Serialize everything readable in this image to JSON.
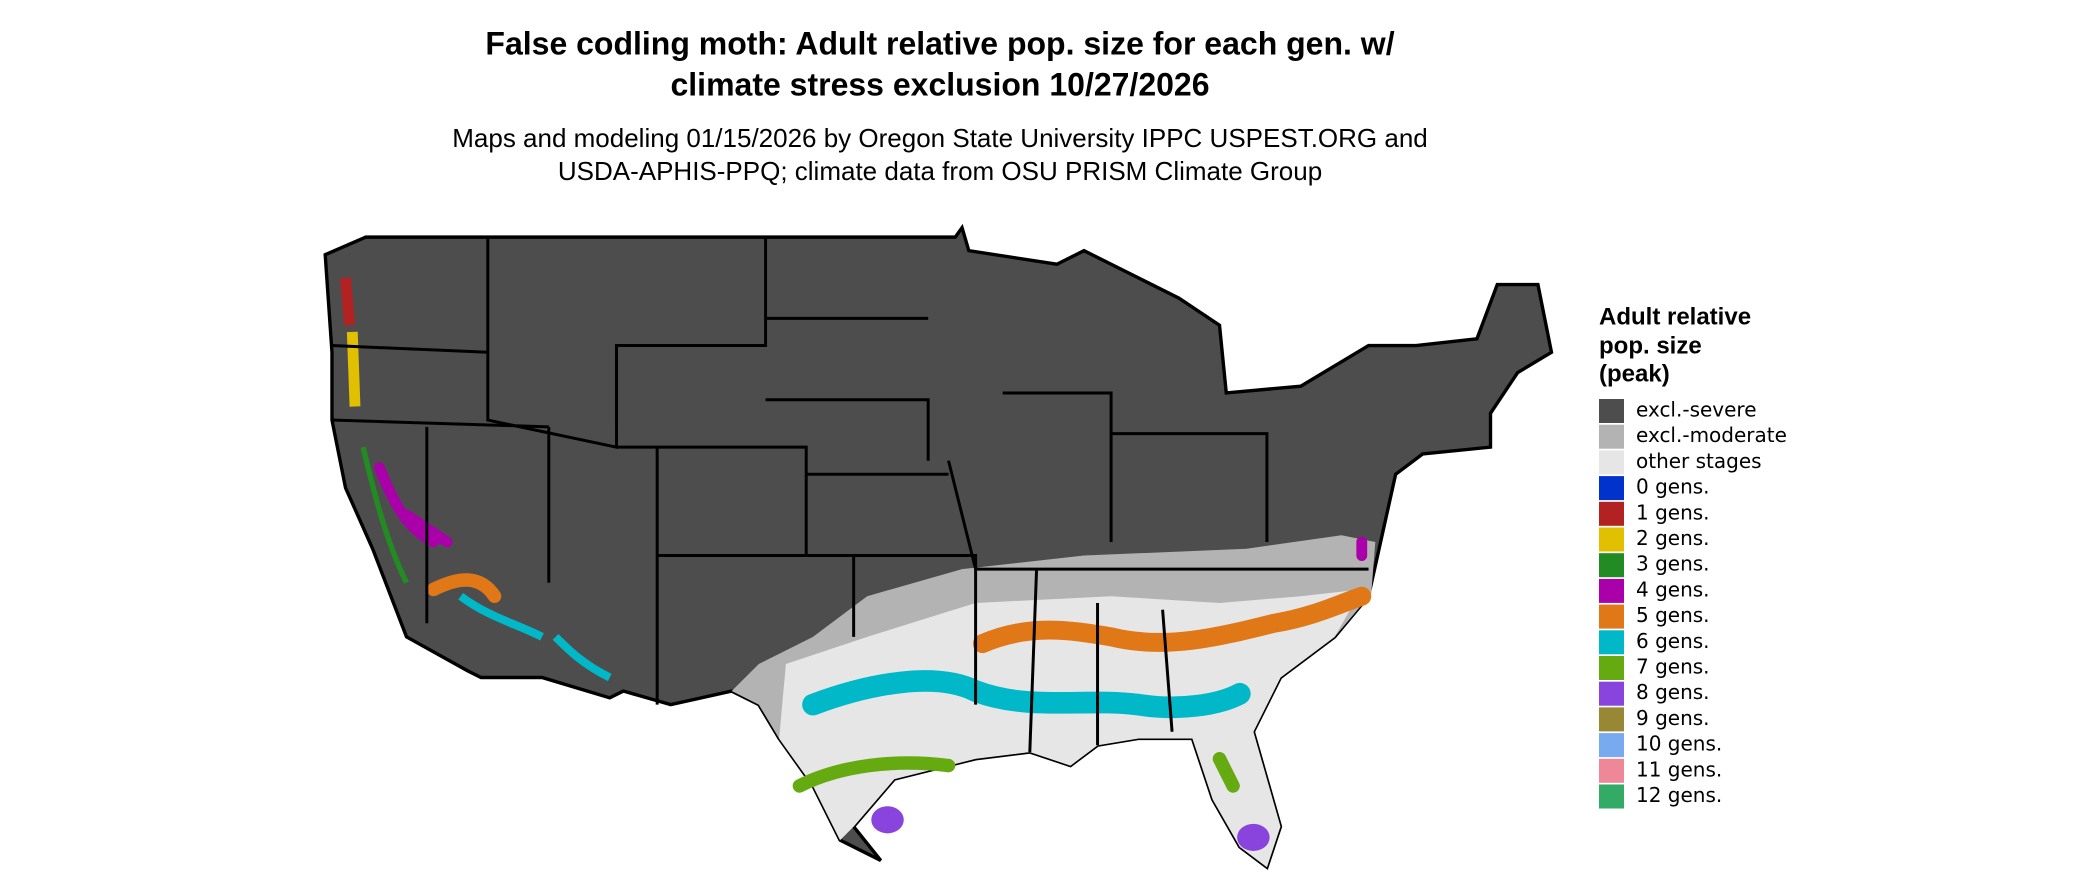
{
  "title": [
    "False codling moth: Adult relative pop. size for each gen. w/",
    "climate stress exclusion 10/27/2026"
  ],
  "subtitle": [
    "Maps and modeling 01/15/2026 by Oregon State University IPPC USPEST.ORG and",
    "USDA-APHIS-PPQ; climate data from OSU PRISM Climate Group"
  ],
  "legend": {
    "title": [
      "Adult relative",
      "pop. size",
      "(peak)"
    ],
    "items": [
      {
        "label": "excl.-severe",
        "color": "#4d4d4d"
      },
      {
        "label": "excl.-moderate",
        "color": "#b3b3b3"
      },
      {
        "label": "other stages",
        "color": "#e6e6e6"
      },
      {
        "label": "0 gens.",
        "color": "#0033cc"
      },
      {
        "label": "1 gens.",
        "color": "#b22222"
      },
      {
        "label": "2 gens.",
        "color": "#e0c000"
      },
      {
        "label": "3 gens.",
        "color": "#228b22"
      },
      {
        "label": "4 gens.",
        "color": "#aa00aa"
      },
      {
        "label": "5 gens.",
        "color": "#e07818"
      },
      {
        "label": "6 gens.",
        "color": "#00b8c8"
      },
      {
        "label": "7 gens.",
        "color": "#66aa11"
      },
      {
        "label": "8 gens.",
        "color": "#8844dd"
      },
      {
        "label": "9 gens.",
        "color": "#998833"
      },
      {
        "label": "10 gens.",
        "color": "#77aaee"
      },
      {
        "label": "11 gens.",
        "color": "#ee8899"
      },
      {
        "label": "12 gens.",
        "color": "#33aa66"
      }
    ]
  }
}
